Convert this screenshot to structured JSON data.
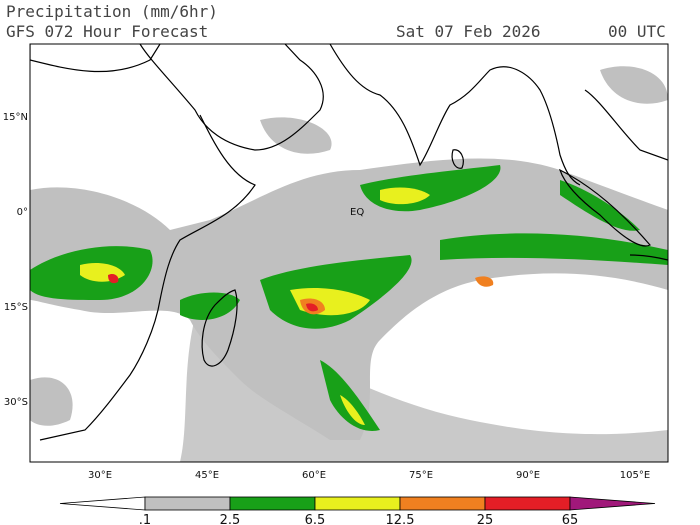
{
  "header": {
    "title": "Precipitation (mm/6hr)",
    "subtitle": "GFS 072 Hour Forecast",
    "date": "Sat 07 Feb 2026",
    "time": "00 UTC"
  },
  "map": {
    "lat_labels": [
      "15°N",
      "0°",
      "15°S",
      "30°S"
    ],
    "lon_labels": [
      "30°E",
      "45°E",
      "60°E",
      "75°E",
      "90°E",
      "105°E"
    ],
    "annotation": "EQ"
  },
  "colorbar": {
    "labels": [
      ".1",
      "2.5",
      "6.5",
      "12.5",
      "25",
      "65"
    ],
    "colors": [
      "#ffffff",
      "#c0c0c0",
      "#18a018",
      "#e8f01e",
      "#f08020",
      "#e41e26",
      "#a0187a"
    ]
  }
}
